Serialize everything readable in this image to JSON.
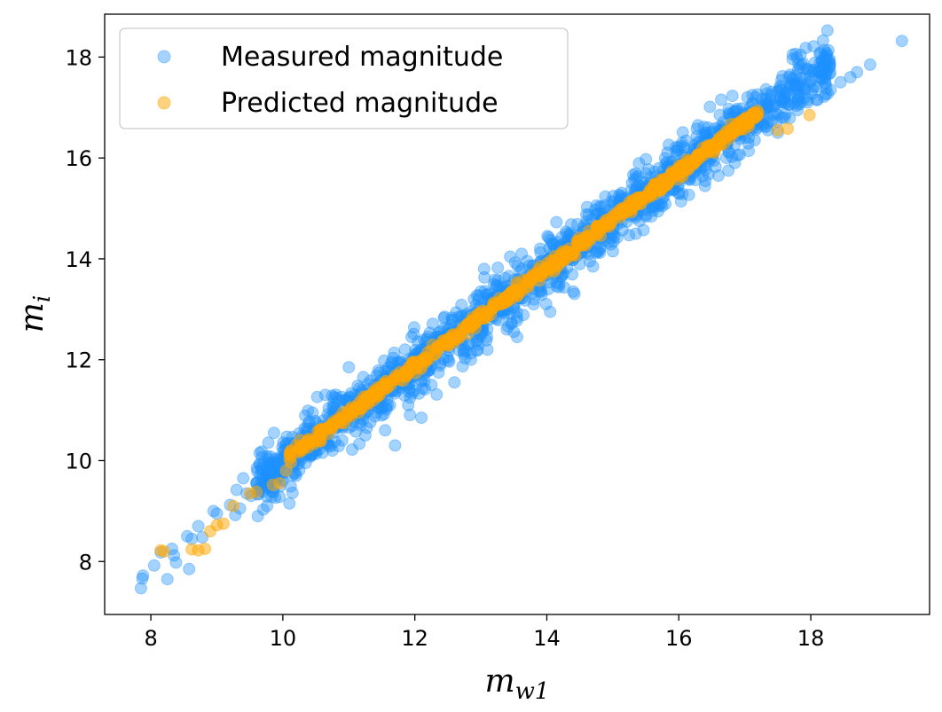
{
  "chart_data": {
    "type": "scatter",
    "title": "",
    "xlabel": "m_w1",
    "ylabel": "m_i",
    "xlabel_parts": {
      "base": "m",
      "sub": "w1"
    },
    "ylabel_parts": {
      "base": "m",
      "sub": "i"
    },
    "xlim": [
      7.3,
      19.8
    ],
    "ylim": [
      6.95,
      18.85
    ],
    "xticks": [
      8,
      10,
      12,
      14,
      16,
      18
    ],
    "yticks": [
      8,
      10,
      12,
      14,
      16,
      18
    ],
    "grid": false,
    "legend_position": "upper-left",
    "series": [
      {
        "name": "Measured magnitude",
        "color": "#1e90ff",
        "alpha": 0.4,
        "points": [
          [
            7.85,
            7.47
          ],
          [
            7.87,
            7.66
          ],
          [
            7.88,
            7.72
          ],
          [
            8.05,
            7.92
          ],
          [
            8.15,
            8.18
          ],
          [
            8.25,
            7.65
          ],
          [
            8.32,
            8.25
          ],
          [
            8.35,
            8.12
          ],
          [
            8.38,
            7.98
          ],
          [
            8.55,
            8.5
          ],
          [
            8.58,
            7.85
          ],
          [
            8.62,
            8.45
          ],
          [
            8.72,
            8.7
          ],
          [
            8.78,
            8.48
          ],
          [
            8.95,
            9.0
          ],
          [
            9.0,
            8.95
          ],
          [
            9.2,
            9.12
          ],
          [
            9.28,
            8.92
          ],
          [
            9.3,
            9.42
          ],
          [
            9.35,
            9.05
          ],
          [
            9.4,
            9.65
          ],
          [
            9.45,
            9.35
          ],
          [
            9.52,
            9.3
          ],
          [
            9.6,
            9.55
          ],
          [
            9.62,
            8.9
          ],
          [
            9.75,
            9.72
          ],
          [
            9.82,
            9.5
          ],
          [
            9.95,
            9.28
          ],
          [
            10.0,
            9.6
          ],
          [
            10.05,
            10.3
          ],
          [
            10.1,
            9.15
          ],
          [
            10.2,
            9.7
          ],
          [
            10.35,
            10.3
          ],
          [
            10.45,
            10.95
          ],
          [
            10.55,
            10.22
          ],
          [
            10.75,
            10.2
          ],
          [
            10.9,
            10.4
          ],
          [
            11.0,
            11.85
          ],
          [
            11.05,
            10.22
          ],
          [
            11.2,
            11.4
          ],
          [
            11.25,
            10.5
          ],
          [
            11.5,
            11.3
          ],
          [
            11.55,
            10.6
          ],
          [
            11.65,
            11.95
          ],
          [
            11.7,
            10.3
          ],
          [
            11.85,
            12.2
          ],
          [
            11.9,
            11.1
          ],
          [
            11.95,
            12.45
          ],
          [
            12.1,
            10.85
          ],
          [
            12.25,
            11.5
          ],
          [
            12.45,
            12.85
          ],
          [
            12.6,
            11.55
          ],
          [
            12.75,
            12.7
          ],
          [
            12.85,
            12.0
          ],
          [
            13.0,
            13.35
          ],
          [
            13.05,
            13.8
          ],
          [
            13.1,
            12.2
          ],
          [
            13.2,
            13.5
          ],
          [
            13.45,
            13.2
          ],
          [
            13.55,
            12.45
          ],
          [
            13.6,
            13.75
          ],
          [
            13.8,
            13.1
          ],
          [
            13.9,
            14.2
          ],
          [
            14.05,
            12.95
          ],
          [
            14.1,
            14.3
          ],
          [
            14.25,
            13.7
          ],
          [
            14.3,
            14.5
          ],
          [
            14.4,
            13.35
          ],
          [
            14.55,
            14.55
          ],
          [
            14.7,
            13.85
          ],
          [
            14.85,
            14.9
          ],
          [
            15.0,
            14.15
          ],
          [
            15.2,
            15.2
          ],
          [
            15.35,
            14.5
          ],
          [
            15.5,
            15.45
          ],
          [
            15.7,
            15.05
          ],
          [
            15.85,
            15.55
          ],
          [
            16.0,
            15.3
          ],
          [
            16.2,
            16.05
          ],
          [
            16.4,
            15.85
          ],
          [
            16.5,
            16.2
          ],
          [
            16.6,
            15.65
          ],
          [
            16.75,
            15.75
          ],
          [
            16.85,
            15.9
          ],
          [
            17.0,
            16.4
          ],
          [
            17.15,
            16.35
          ],
          [
            17.35,
            16.55
          ],
          [
            17.5,
            16.5
          ],
          [
            17.6,
            16.8
          ],
          [
            17.8,
            16.95
          ],
          [
            17.95,
            17.1
          ],
          [
            18.1,
            17.15
          ],
          [
            18.3,
            17.35
          ],
          [
            18.45,
            17.5
          ],
          [
            18.6,
            17.6
          ],
          [
            18.7,
            17.7
          ],
          [
            18.9,
            17.85
          ],
          [
            19.38,
            18.32
          ]
        ],
        "band": {
          "x_start": 9.6,
          "x_end": 18.3,
          "slope": 0.962,
          "intercept": 0.35,
          "spread": 0.28,
          "count": 1500
        }
      },
      {
        "name": "Predicted magnitude",
        "color": "#ffa500",
        "alpha": 0.5,
        "points": [
          [
            8.15,
            8.22
          ],
          [
            8.2,
            8.2
          ],
          [
            8.62,
            8.24
          ],
          [
            8.72,
            8.22
          ],
          [
            8.82,
            8.25
          ],
          [
            8.9,
            8.6
          ],
          [
            9.0,
            8.72
          ],
          [
            9.1,
            8.75
          ],
          [
            9.25,
            9.1
          ],
          [
            9.5,
            9.35
          ],
          [
            9.6,
            9.38
          ],
          [
            9.85,
            9.52
          ],
          [
            9.95,
            9.55
          ],
          [
            10.05,
            9.8
          ],
          [
            17.5,
            16.55
          ],
          [
            17.65,
            16.58
          ],
          [
            17.98,
            16.85
          ]
        ],
        "band": {
          "x_start": 10.1,
          "x_end": 17.2,
          "slope": 0.962,
          "intercept": 0.35,
          "spread": 0.06,
          "count": 700
        }
      }
    ]
  }
}
